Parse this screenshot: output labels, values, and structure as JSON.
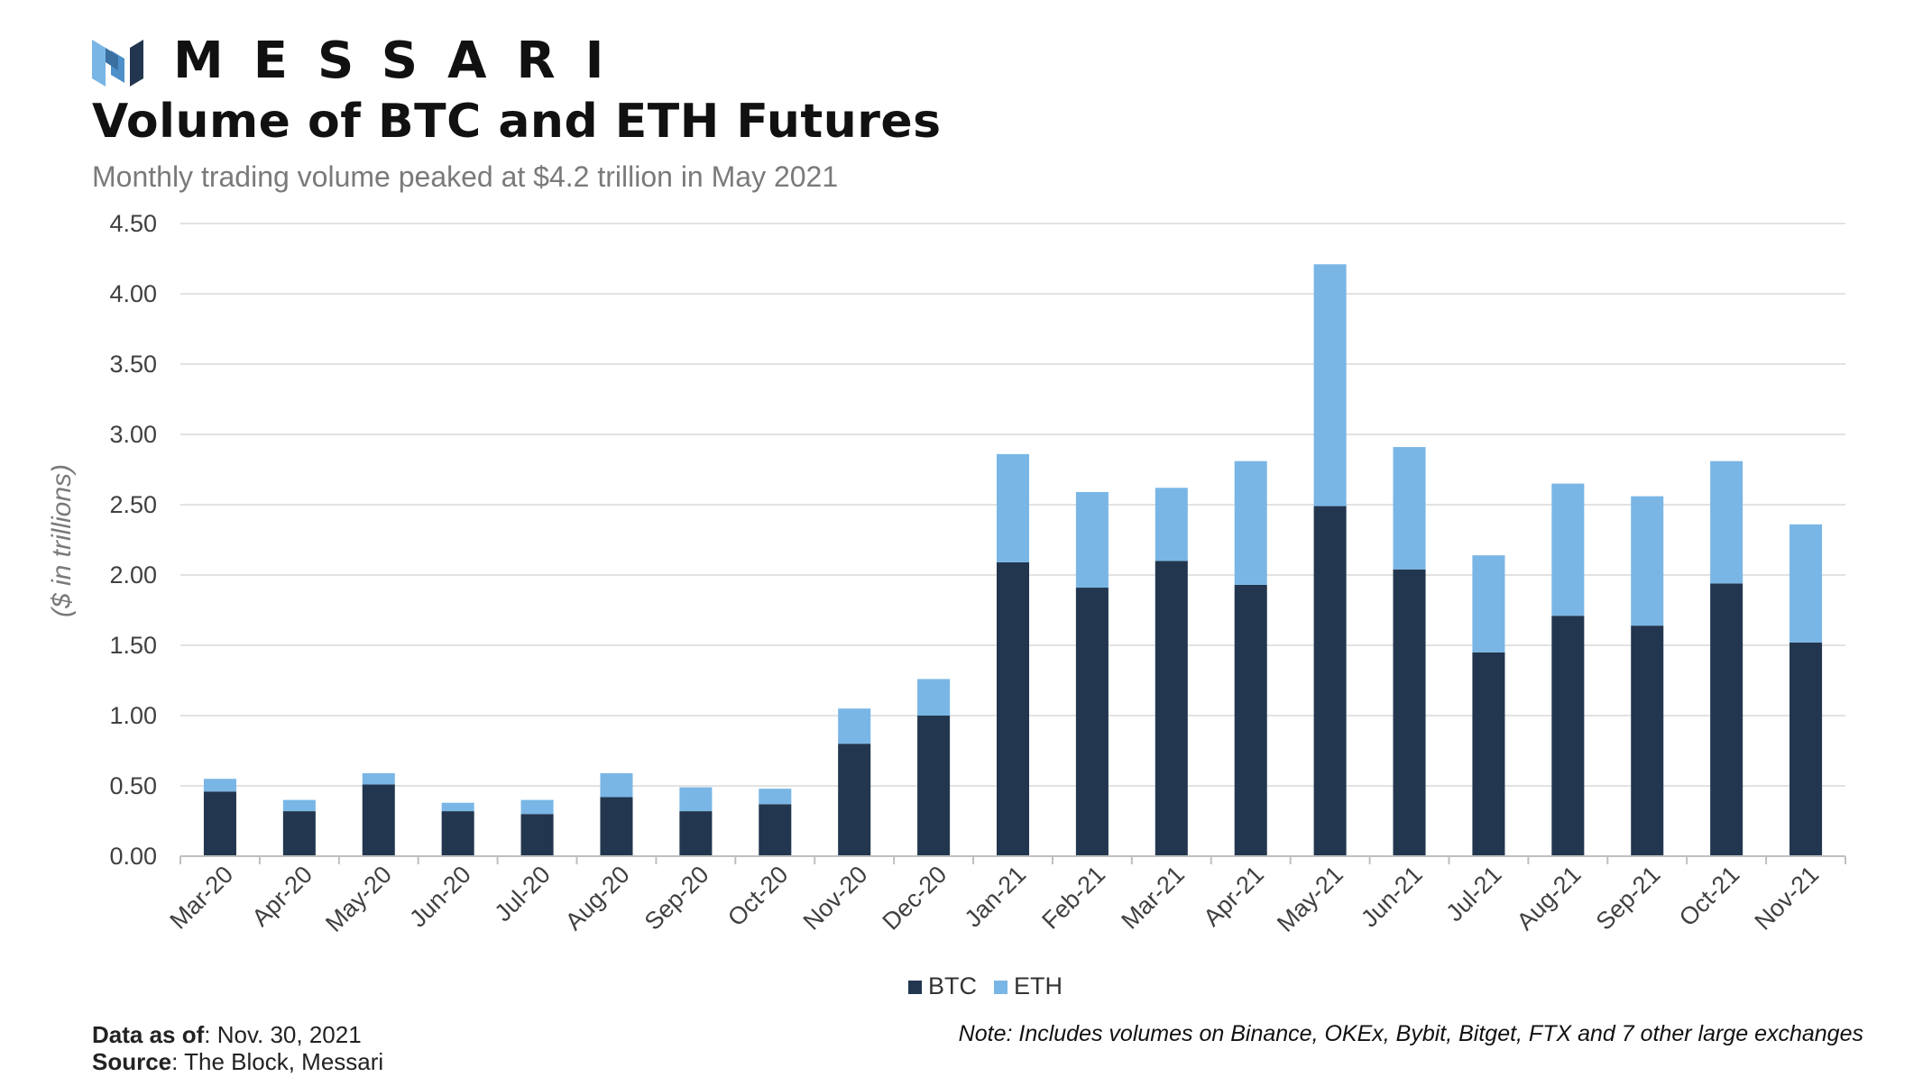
{
  "brand": {
    "name": "MESSARI",
    "icon": "messari-logo-icon"
  },
  "header": {
    "title": "Volume of BTC and ETH Futures",
    "subtitle": "Monthly trading volume peaked at $4.2 trillion in May 2021"
  },
  "colors": {
    "btc": "#22374F",
    "eth": "#79B6E6",
    "grid": "#D9D9D9",
    "axis": "#BFBFBF"
  },
  "chart_data": {
    "type": "bar",
    "stacked": true,
    "title": "Volume of BTC and ETH Futures",
    "xlabel": "",
    "ylabel": "($ in trillions)",
    "ylim": [
      0,
      4.5
    ],
    "yticks": [
      "0.00",
      "0.50",
      "1.00",
      "1.50",
      "2.00",
      "2.50",
      "3.00",
      "3.50",
      "4.00",
      "4.50"
    ],
    "grid": true,
    "legend_position": "bottom-center",
    "categories": [
      "Mar-20",
      "Apr-20",
      "May-20",
      "Jun-20",
      "Jul-20",
      "Aug-20",
      "Sep-20",
      "Oct-20",
      "Nov-20",
      "Dec-20",
      "Jan-21",
      "Feb-21",
      "Mar-21",
      "Apr-21",
      "May-21",
      "Jun-21",
      "Jul-21",
      "Aug-21",
      "Sep-21",
      "Oct-21",
      "Nov-21"
    ],
    "series": [
      {
        "name": "BTC",
        "values": [
          0.46,
          0.32,
          0.51,
          0.32,
          0.3,
          0.42,
          0.32,
          0.37,
          0.8,
          1.0,
          2.09,
          1.91,
          2.1,
          1.93,
          2.49,
          2.04,
          1.45,
          1.71,
          1.64,
          1.94,
          1.52
        ]
      },
      {
        "name": "ETH",
        "values": [
          0.09,
          0.08,
          0.08,
          0.06,
          0.1,
          0.17,
          0.17,
          0.11,
          0.25,
          0.26,
          0.77,
          0.68,
          0.52,
          0.88,
          1.72,
          0.87,
          0.69,
          0.94,
          0.92,
          0.87,
          0.84
        ]
      }
    ]
  },
  "footer": {
    "data_as_of_label": "Data as of",
    "data_as_of_value": ": Nov. 30, 2021",
    "source_label": "Source",
    "source_value": ": The Block, Messari",
    "note": "Note: Includes volumes on Binance, OKEx, Bybit, Bitget, FTX and 7 other large exchanges"
  }
}
